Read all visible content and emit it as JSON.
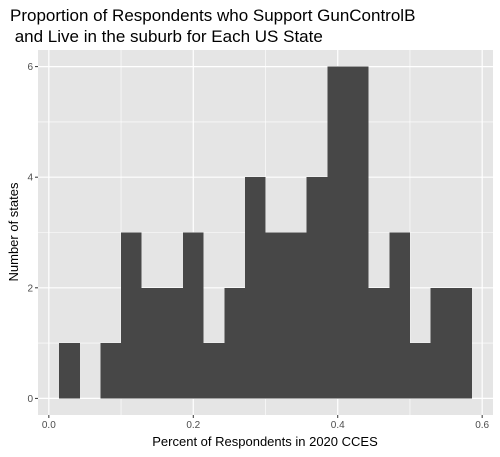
{
  "chart_data": {
    "type": "bar",
    "title_lines": [
      "Proportion of Respondents who Support GunControlB",
      " and Live in the suburb for Each US State"
    ],
    "xlabel": "Percent of Respondents in 2020 CCES",
    "ylabel": "Number of states",
    "xlim": [
      -0.015,
      0.615
    ],
    "ylim": [
      -0.3,
      6.3
    ],
    "xticks": [
      0.0,
      0.2,
      0.4,
      0.6
    ],
    "xtick_labels": [
      "0.0",
      "0.2",
      "0.4",
      "0.6"
    ],
    "yticks": [
      0,
      2,
      4,
      6
    ],
    "ytick_labels": [
      "0",
      "2",
      "4",
      "6"
    ],
    "grid": true,
    "bar_color": "#474747",
    "panel_color": "#e5e5e5",
    "grid_color": "#ffffff",
    "bins": [
      {
        "x_start": 0.0143,
        "x_end": 0.0429,
        "count": 1
      },
      {
        "x_start": 0.0429,
        "x_end": 0.0714,
        "count": 0
      },
      {
        "x_start": 0.0714,
        "x_end": 0.1,
        "count": 1
      },
      {
        "x_start": 0.1,
        "x_end": 0.1286,
        "count": 3
      },
      {
        "x_start": 0.1286,
        "x_end": 0.1571,
        "count": 2
      },
      {
        "x_start": 0.1571,
        "x_end": 0.1857,
        "count": 2
      },
      {
        "x_start": 0.1857,
        "x_end": 0.2143,
        "count": 3
      },
      {
        "x_start": 0.2143,
        "x_end": 0.2429,
        "count": 1
      },
      {
        "x_start": 0.2429,
        "x_end": 0.2714,
        "count": 2
      },
      {
        "x_start": 0.2714,
        "x_end": 0.3,
        "count": 4
      },
      {
        "x_start": 0.3,
        "x_end": 0.3286,
        "count": 3
      },
      {
        "x_start": 0.3286,
        "x_end": 0.3571,
        "count": 3
      },
      {
        "x_start": 0.3571,
        "x_end": 0.3857,
        "count": 4
      },
      {
        "x_start": 0.3857,
        "x_end": 0.4143,
        "count": 6
      },
      {
        "x_start": 0.4143,
        "x_end": 0.4429,
        "count": 6
      },
      {
        "x_start": 0.4429,
        "x_end": 0.4714,
        "count": 2
      },
      {
        "x_start": 0.4714,
        "x_end": 0.5,
        "count": 3
      },
      {
        "x_start": 0.5,
        "x_end": 0.5286,
        "count": 1
      },
      {
        "x_start": 0.5286,
        "x_end": 0.5571,
        "count": 2
      },
      {
        "x_start": 0.5571,
        "x_end": 0.5857,
        "count": 2
      }
    ]
  }
}
